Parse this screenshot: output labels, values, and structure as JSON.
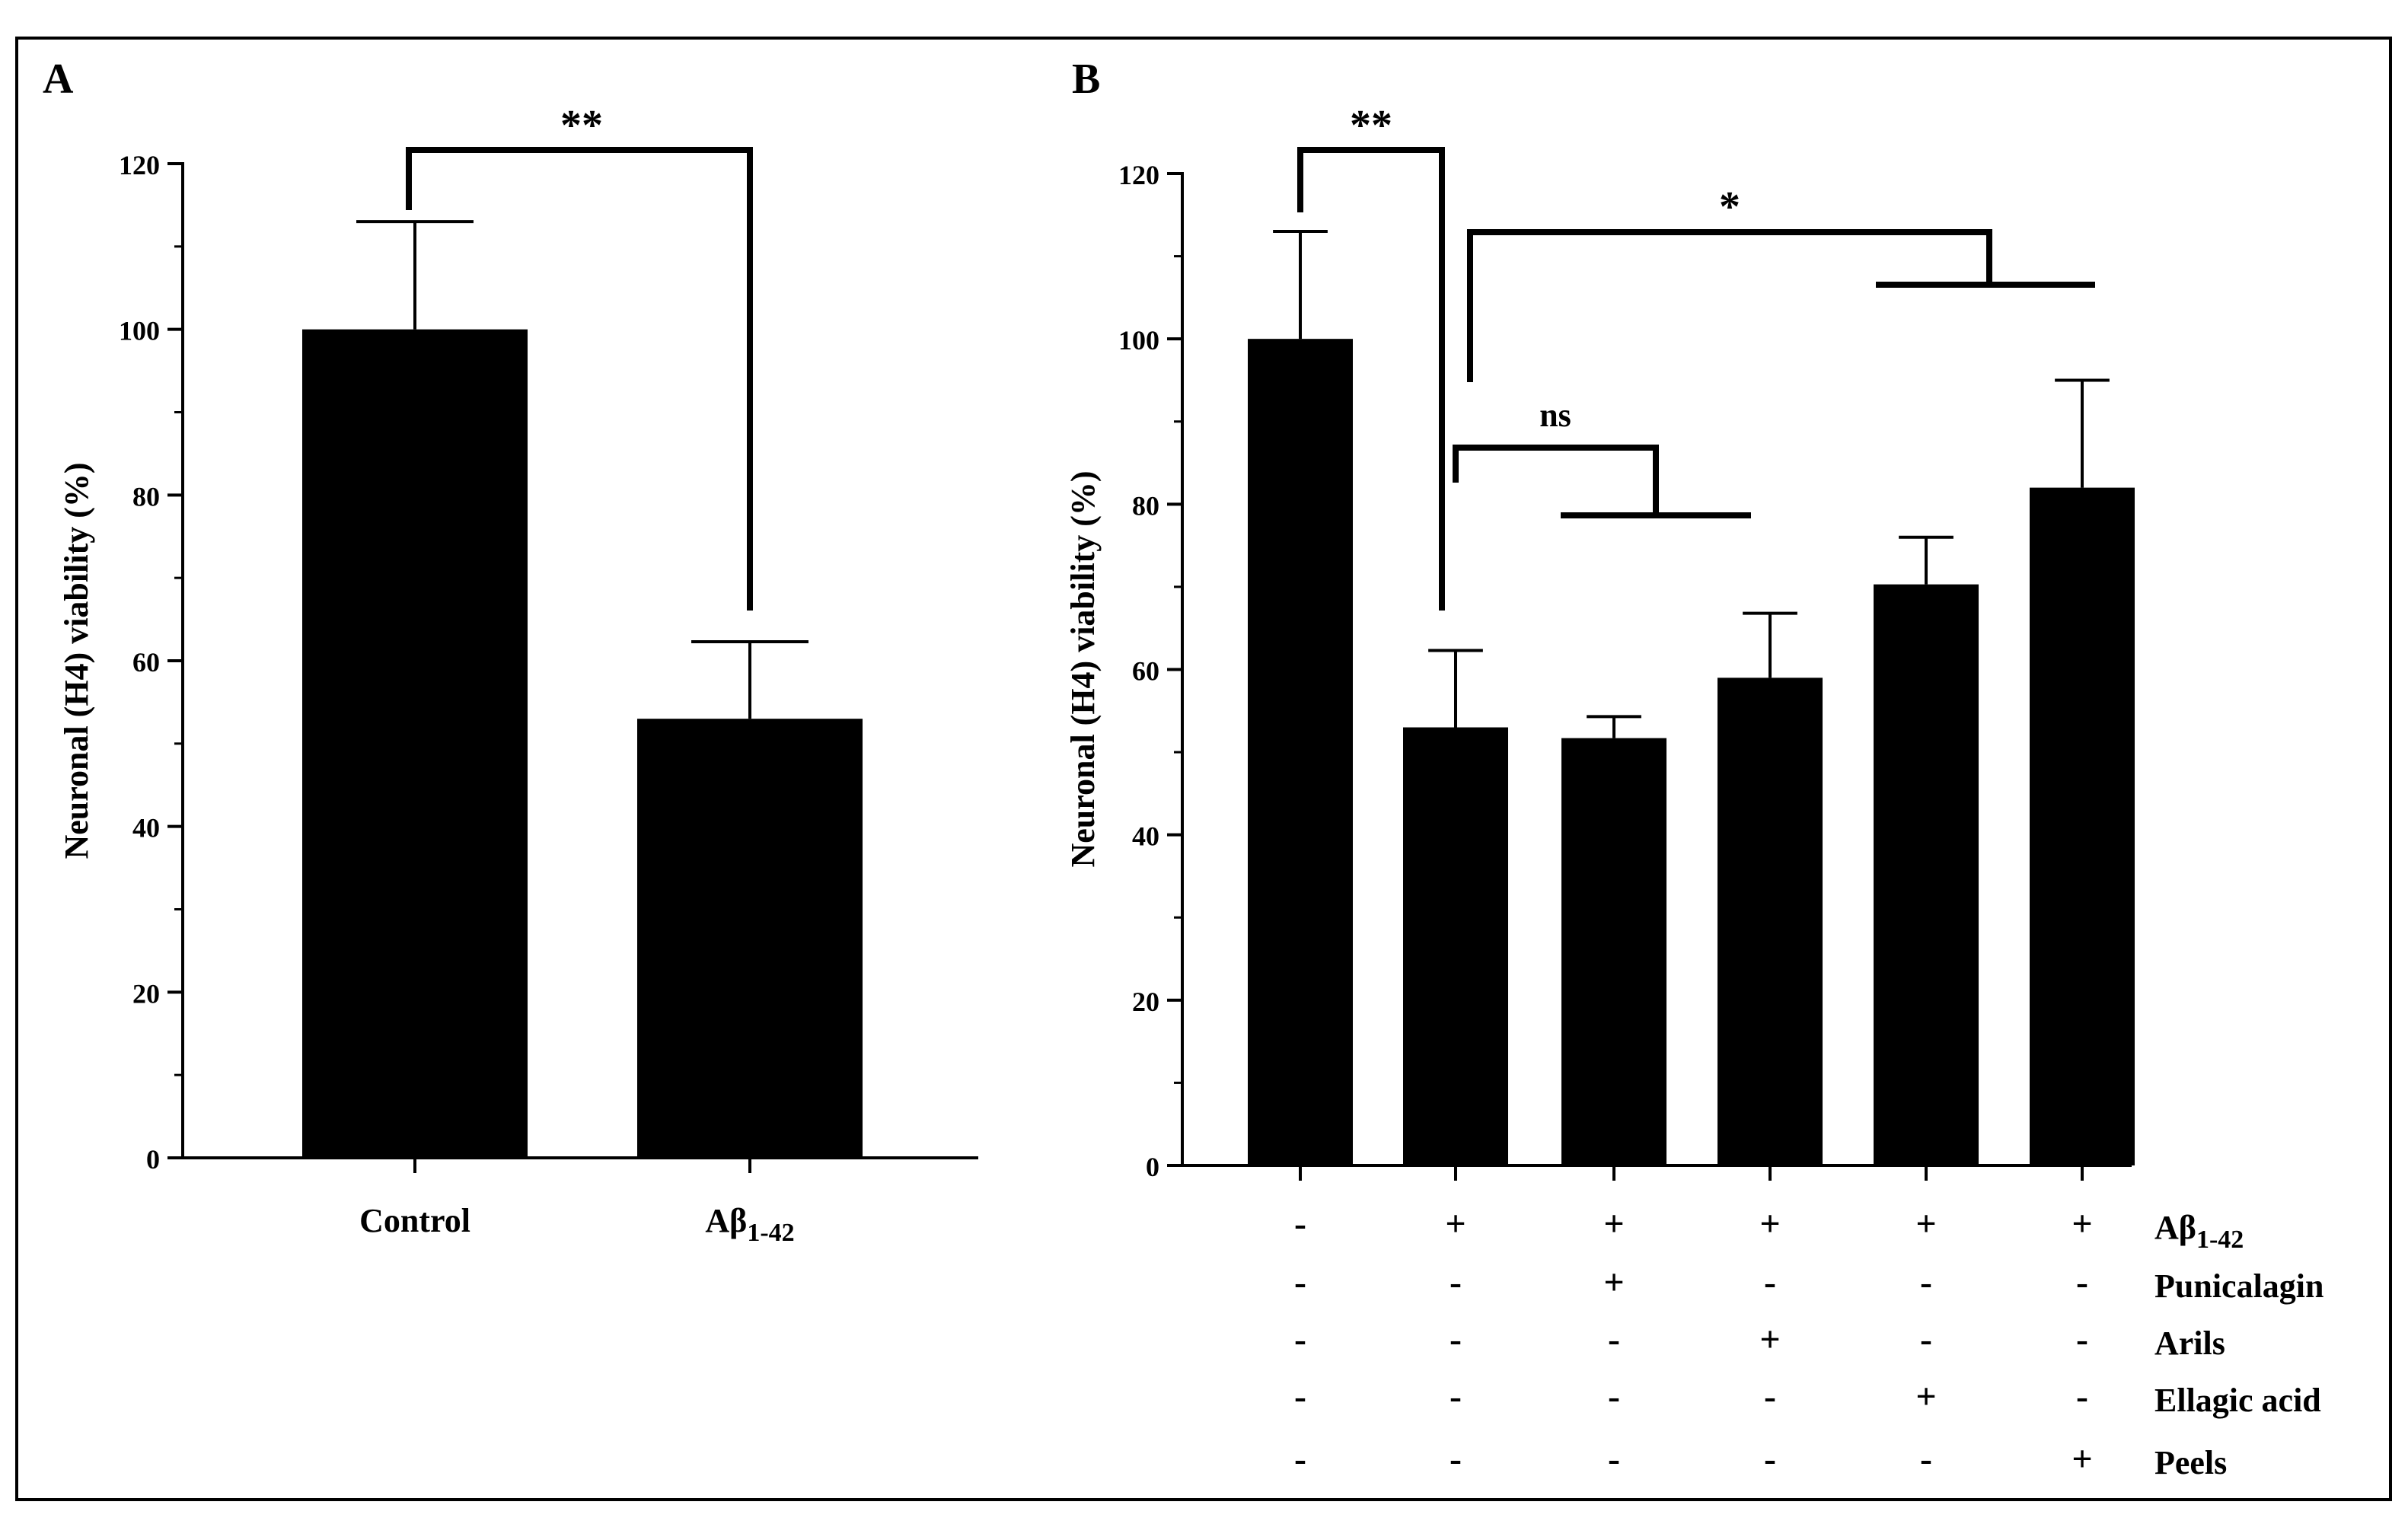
{
  "panels": [
    {
      "letter": "A",
      "ylabel": "Neuronal (H4) viability (%)",
      "ylim": [
        0,
        120
      ],
      "yticks": [
        "0",
        "20",
        "40",
        "60",
        "80",
        "100",
        "120"
      ],
      "categories": [
        {
          "label": "Control",
          "sub": ""
        },
        {
          "label": "Aβ",
          "sub": "1-42"
        }
      ],
      "annotations": [
        "**"
      ]
    },
    {
      "letter": "B",
      "ylabel": "Neuronal (H4) viability (%)",
      "ylim": [
        0,
        120
      ],
      "yticks": [
        "0",
        "20",
        "40",
        "60",
        "80",
        "100",
        "120"
      ],
      "treatment_rows": [
        {
          "label": "Aβ",
          "sub": "1-42",
          "signs": [
            "-",
            "+",
            "+",
            "+",
            "+",
            "+"
          ]
        },
        {
          "label": "Punicalagin",
          "sub": "",
          "signs": [
            "-",
            "-",
            "+",
            "-",
            "-",
            "-"
          ]
        },
        {
          "label": "Arils",
          "sub": "",
          "signs": [
            "-",
            "-",
            "-",
            "+",
            "-",
            "-"
          ]
        },
        {
          "label": "Ellagic acid",
          "sub": "",
          "signs": [
            "-",
            "-",
            "-",
            "-",
            "+",
            "-"
          ]
        },
        {
          "label": "Peels",
          "sub": "",
          "signs": [
            "-",
            "-",
            "-",
            "-",
            "-",
            "+"
          ]
        }
      ],
      "annotations": [
        "**",
        "*",
        "ns"
      ]
    }
  ],
  "chart_data": [
    {
      "type": "bar",
      "title": "A",
      "categories": [
        "Control",
        "Aβ1-42"
      ],
      "values": [
        100,
        53
      ],
      "errors": [
        13,
        9.3
      ],
      "ylabel": "Neuronal (H4) viability (%)",
      "ylim": [
        0,
        120
      ],
      "significance": [
        {
          "between": [
            0,
            1
          ],
          "label": "**"
        }
      ]
    },
    {
      "type": "bar",
      "title": "B",
      "categories": [
        "Control",
        "Aβ1-42",
        "Aβ1-42 + Punicalagin",
        "Aβ1-42 + Arils",
        "Aβ1-42 + Ellagic acid",
        "Aβ1-42 + Peels"
      ],
      "values": [
        100,
        53,
        51.7,
        59,
        70.3,
        82
      ],
      "errors": [
        13,
        9.3,
        2.6,
        7.8,
        5.7,
        13
      ],
      "ylabel": "Neuronal (H4) viability (%)",
      "ylim": [
        0,
        120
      ],
      "significance": [
        {
          "between": [
            0,
            1
          ],
          "label": "**"
        },
        {
          "between": [
            1,
            [
              4,
              5
            ]
          ],
          "label": "*"
        },
        {
          "between": [
            1,
            [
              2,
              3
            ]
          ],
          "label": "ns"
        }
      ]
    }
  ]
}
